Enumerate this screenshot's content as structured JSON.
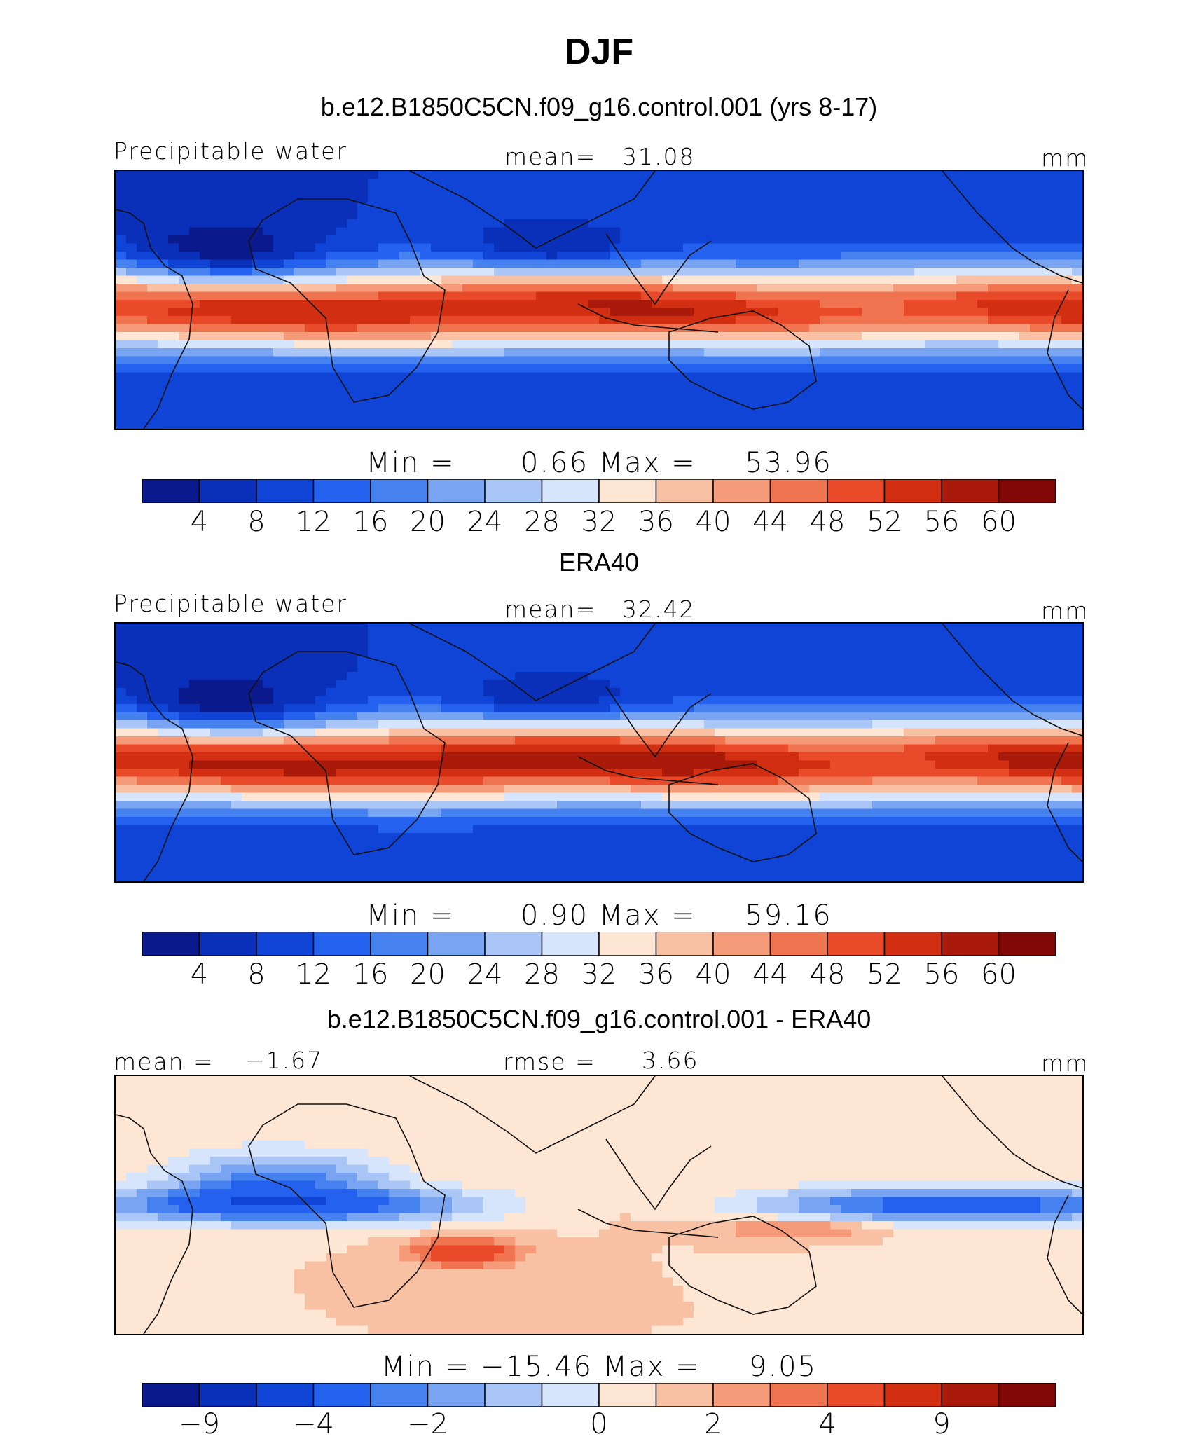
{
  "figure": {
    "title": "DJF"
  },
  "palette": [
    "#0a1a8c",
    "#0a2fb8",
    "#0f44d6",
    "#2461ee",
    "#4581ef",
    "#79a4f2",
    "#aac6f7",
    "#d6e5fb",
    "#fde6d3",
    "#f9c1a4",
    "#f69b7a",
    "#f17451",
    "#e94a2a",
    "#d22f12",
    "#aa1a0a",
    "#820808"
  ],
  "chart_data": [
    {
      "type": "heatmap",
      "title": "b.e12.B1850C5CN.f09_g16.control.001 (yrs 8-17)",
      "variable": "Precipitable water",
      "units": "mm",
      "mean_label": "mean=",
      "mean": "31.08",
      "min_label": "Min =",
      "min": "0.66",
      "max_label": "Max =",
      "max": "53.96",
      "levels": [
        "4",
        "8",
        "12",
        "16",
        "20",
        "24",
        "28",
        "32",
        "36",
        "40",
        "44",
        "48",
        "52",
        "56",
        "60"
      ]
    },
    {
      "type": "heatmap",
      "title": "ERA40",
      "variable": "Precipitable water",
      "units": "mm",
      "mean_label": "mean=",
      "mean": "32.42",
      "min_label": "Min =",
      "min": "0.90",
      "max_label": "Max =",
      "max": "59.16",
      "levels": [
        "4",
        "8",
        "12",
        "16",
        "20",
        "24",
        "28",
        "32",
        "36",
        "40",
        "44",
        "48",
        "52",
        "56",
        "60"
      ]
    },
    {
      "type": "heatmap",
      "title": "b.e12.B1850C5CN.f09_g16.control.001 - ERA40",
      "units": "mm",
      "mean_label": "mean =",
      "mean": "−1.67",
      "rmse_label": "rmse =",
      "rmse": "3.66",
      "min_label": "Min =",
      "min": "−15.46",
      "max_label": "Max =",
      "max": "9.05",
      "levels": [
        "−9",
        "−4",
        "−2",
        "0",
        "2",
        "4",
        "9"
      ]
    }
  ]
}
